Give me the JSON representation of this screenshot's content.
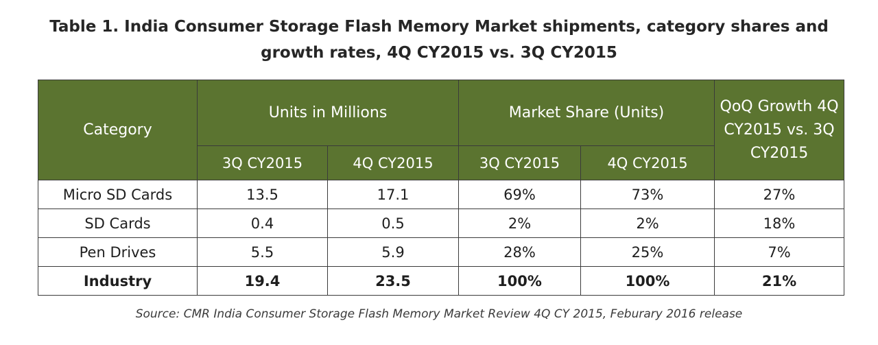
{
  "title": {
    "line1": "Table 1. India Consumer Storage Flash Memory Market shipments, category shares and",
    "line2": "growth rates, 4Q CY2015 vs. 3Q CY2015"
  },
  "header": {
    "category": "Category",
    "units_group": "Units in Millions",
    "share_group": "Market Share (Units)",
    "growth": "QoQ Growth 4Q CY2015 vs. 3Q CY2015",
    "sub": [
      "3Q CY2015",
      "4Q CY2015",
      "3Q CY2015",
      "4Q CY2015"
    ]
  },
  "source": "Source: CMR India Consumer Storage Flash Memory Market Review 4Q CY 2015, Feburary 2016 release",
  "chart_data": {
    "type": "table",
    "title": "Table 1. India Consumer Storage Flash Memory Market shipments, category shares and growth rates, 4Q CY2015 vs. 3Q CY2015",
    "columns": [
      "Category",
      "Units in Millions 3Q CY2015",
      "Units in Millions 4Q CY2015",
      "Market Share (Units) 3Q CY2015",
      "Market Share (Units) 4Q CY2015",
      "QoQ Growth 4Q CY2015 vs. 3Q CY2015"
    ],
    "rows": [
      [
        "Micro SD Cards",
        "13.5",
        "17.1",
        "69%",
        "73%",
        "27%"
      ],
      [
        "SD Cards",
        "0.4",
        "0.5",
        "2%",
        "2%",
        "18%"
      ],
      [
        "Pen Drives",
        "5.5",
        "5.9",
        "28%",
        "25%",
        "7%"
      ],
      [
        "Industry",
        "19.4",
        "23.5",
        "100%",
        "100%",
        "21%"
      ]
    ]
  }
}
